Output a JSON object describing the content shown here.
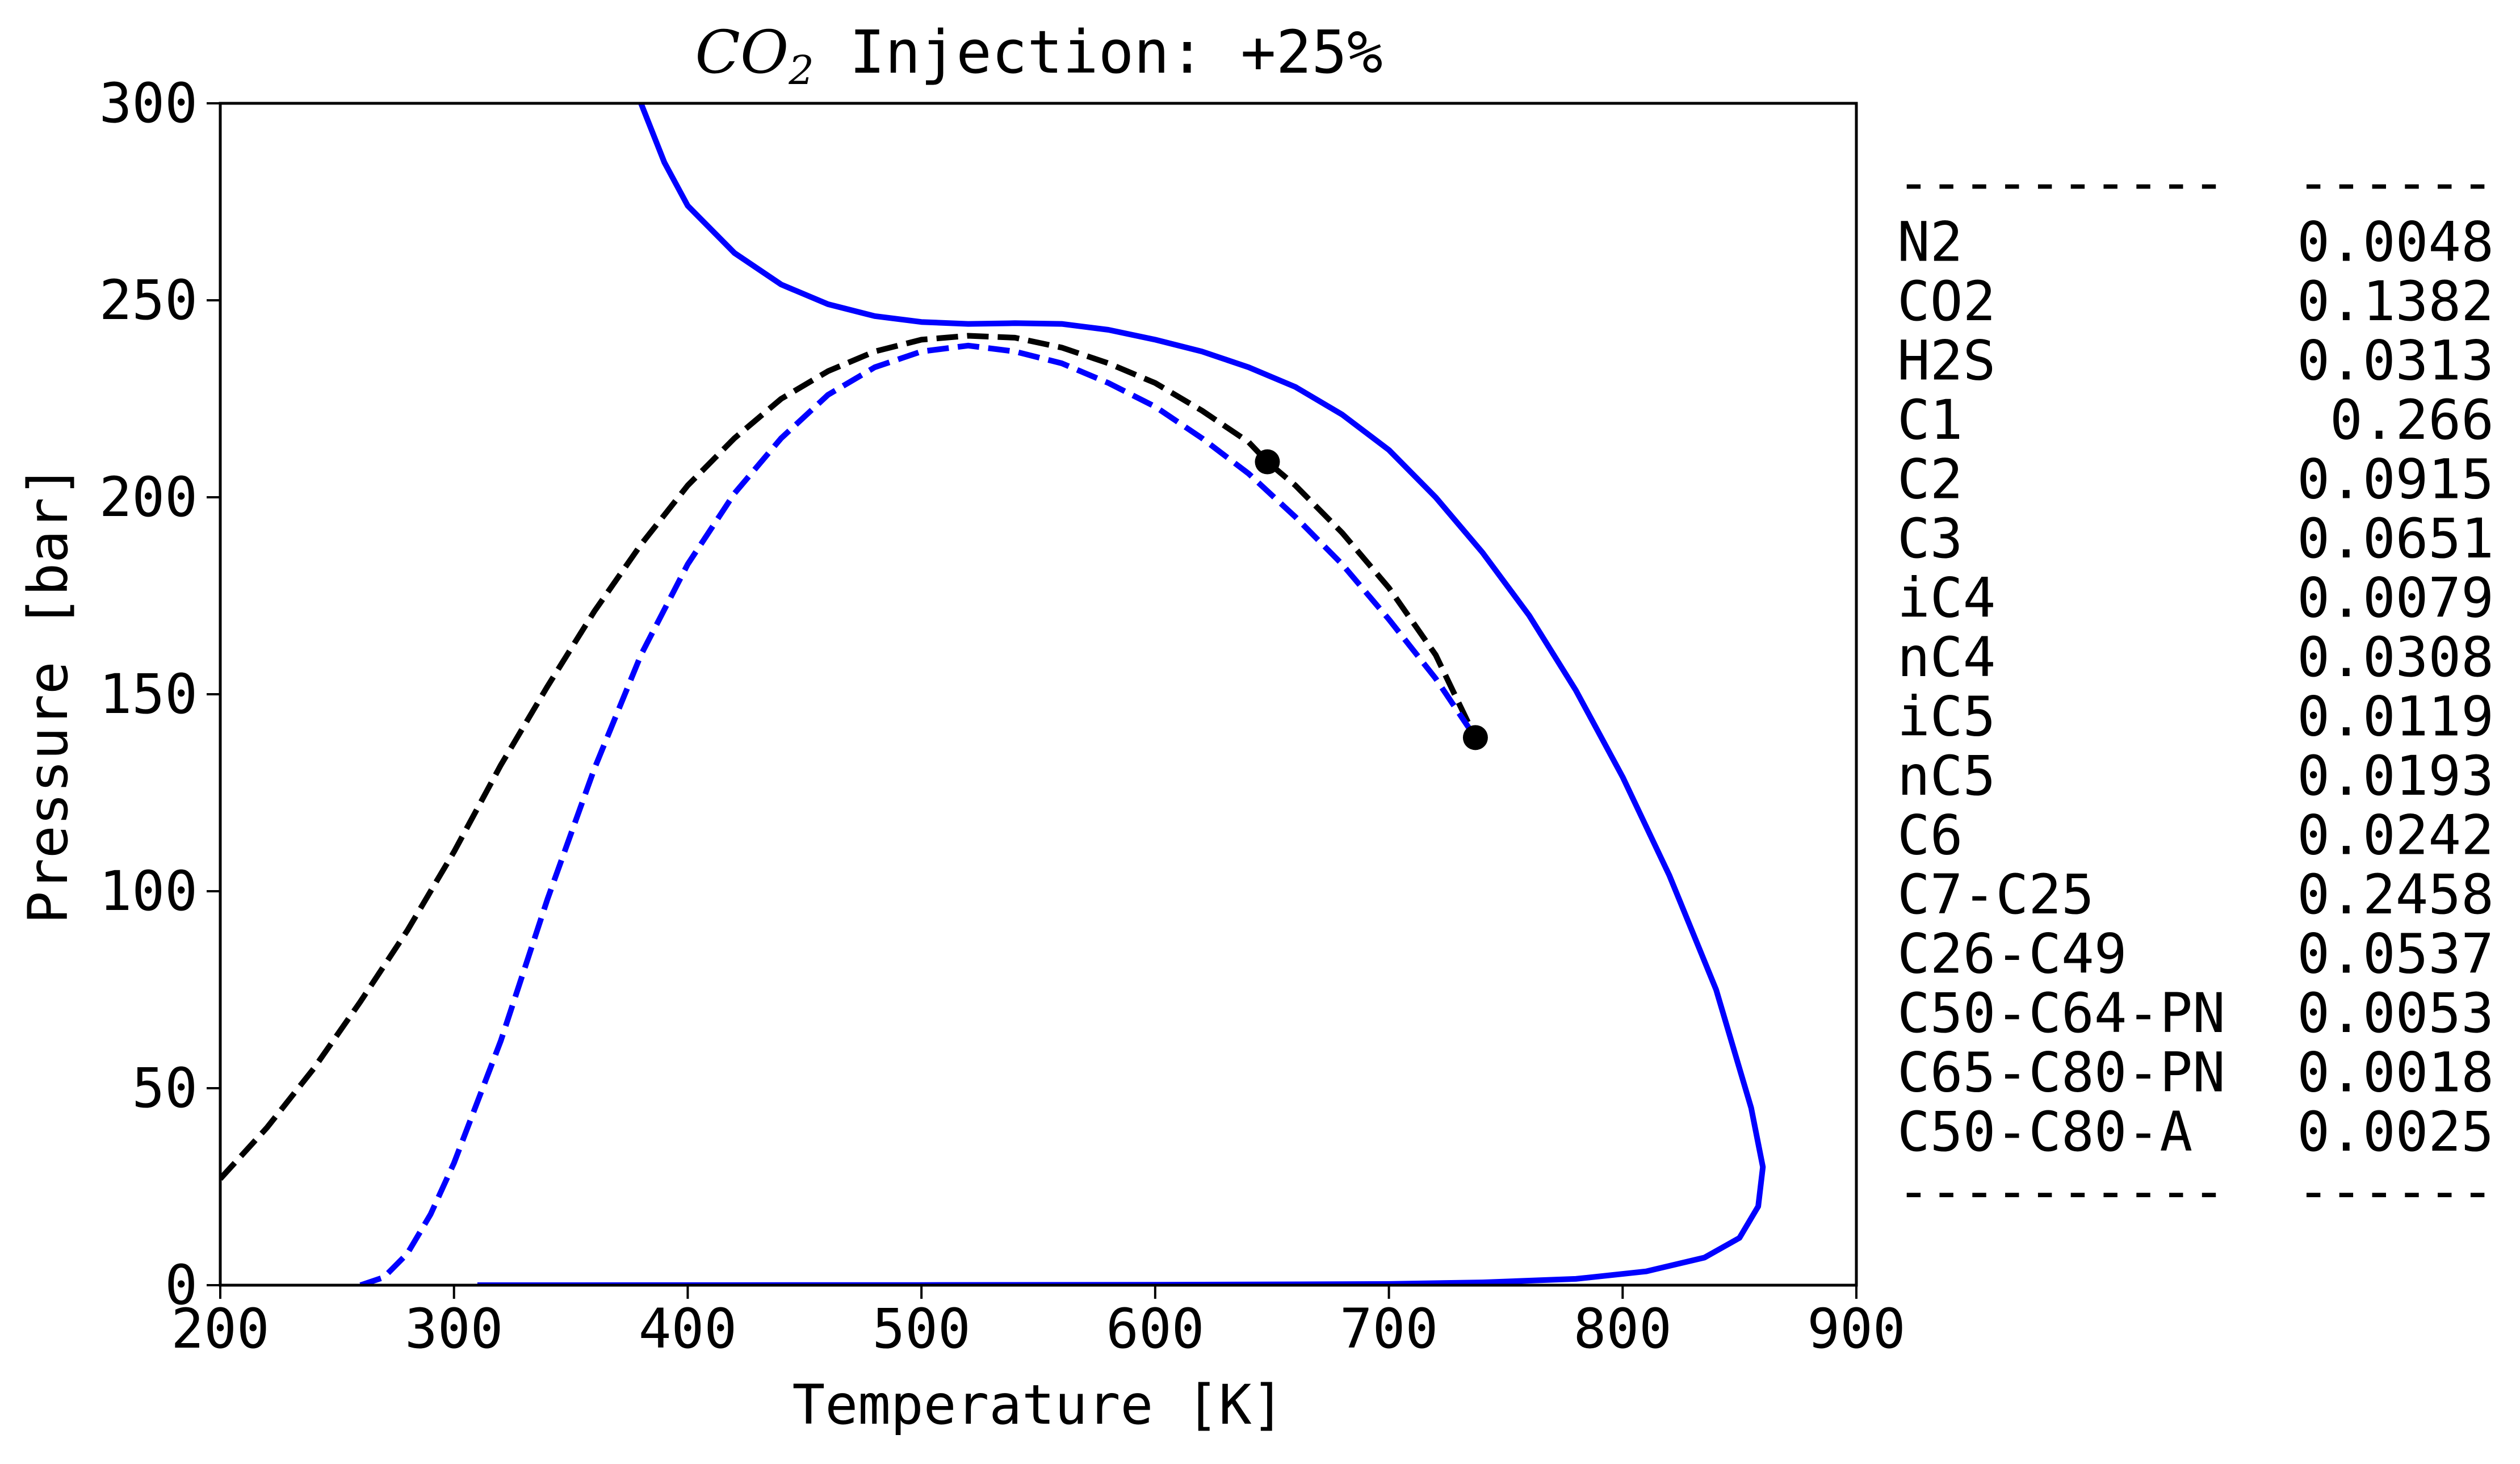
{
  "chart_data": {
    "type": "line",
    "title": {
      "chem_base": "CO",
      "chem_sub": "2",
      "rest": " Injection: +25%"
    },
    "xlabel": "Temperature [K]",
    "ylabel": "Pressure [bar]",
    "xlim": [
      200,
      900
    ],
    "ylim": [
      0,
      300
    ],
    "xticks": [
      200,
      300,
      400,
      500,
      600,
      700,
      800,
      900
    ],
    "yticks": [
      0,
      50,
      100,
      150,
      200,
      250,
      300
    ],
    "grid": false,
    "legend": null,
    "series": [
      {
        "color": "#0000ff",
        "style": "solid",
        "points": [
          [
            380,
            300
          ],
          [
            390,
            285
          ],
          [
            400,
            274
          ],
          [
            420,
            262
          ],
          [
            440,
            254
          ],
          [
            460,
            249
          ],
          [
            480,
            246
          ],
          [
            500,
            244.5
          ],
          [
            520,
            244
          ],
          [
            540,
            244.2
          ],
          [
            560,
            244
          ],
          [
            580,
            242.5
          ],
          [
            600,
            240
          ],
          [
            620,
            237
          ],
          [
            640,
            233
          ],
          [
            660,
            228
          ],
          [
            680,
            221
          ],
          [
            700,
            212
          ],
          [
            720,
            200
          ],
          [
            740,
            186
          ],
          [
            760,
            170
          ],
          [
            780,
            151
          ],
          [
            800,
            129
          ],
          [
            820,
            104
          ],
          [
            840,
            75
          ],
          [
            855,
            45
          ],
          [
            860,
            30
          ],
          [
            858,
            20
          ],
          [
            850,
            12
          ],
          [
            835,
            7
          ],
          [
            810,
            3.5
          ],
          [
            780,
            1.6
          ],
          [
            740,
            0.7
          ],
          [
            700,
            0.3
          ],
          [
            600,
            0.1
          ],
          [
            500,
            0.05
          ],
          [
            400,
            0.02
          ],
          [
            310,
            0
          ]
        ]
      },
      {
        "color": "#000000",
        "style": "dashed",
        "points": [
          [
            200,
            27
          ],
          [
            220,
            40
          ],
          [
            240,
            55
          ],
          [
            260,
            72
          ],
          [
            280,
            90
          ],
          [
            300,
            110
          ],
          [
            320,
            132
          ],
          [
            340,
            152
          ],
          [
            360,
            171
          ],
          [
            380,
            188
          ],
          [
            400,
            203
          ],
          [
            420,
            215
          ],
          [
            440,
            225
          ],
          [
            460,
            232
          ],
          [
            480,
            237
          ],
          [
            500,
            240
          ],
          [
            520,
            241
          ],
          [
            540,
            240.5
          ],
          [
            560,
            238
          ],
          [
            580,
            234
          ],
          [
            600,
            229
          ],
          [
            620,
            222
          ],
          [
            640,
            214
          ],
          [
            648,
            209
          ],
          [
            660,
            203
          ],
          [
            680,
            191
          ],
          [
            700,
            177
          ],
          [
            720,
            160
          ],
          [
            737,
            139
          ]
        ]
      },
      {
        "color": "#0000ff",
        "style": "dashed",
        "points": [
          [
            260,
            0
          ],
          [
            270,
            2
          ],
          [
            280,
            8
          ],
          [
            290,
            18
          ],
          [
            300,
            31
          ],
          [
            320,
            62
          ],
          [
            340,
            98
          ],
          [
            360,
            131
          ],
          [
            380,
            160
          ],
          [
            400,
            183
          ],
          [
            420,
            201
          ],
          [
            440,
            215
          ],
          [
            460,
            226
          ],
          [
            480,
            233
          ],
          [
            500,
            237
          ],
          [
            520,
            238.5
          ],
          [
            540,
            237
          ],
          [
            560,
            234
          ],
          [
            580,
            229
          ],
          [
            600,
            223
          ],
          [
            620,
            215
          ],
          [
            640,
            206
          ],
          [
            660,
            195
          ],
          [
            680,
            183
          ],
          [
            700,
            169
          ],
          [
            720,
            154
          ],
          [
            737,
            139
          ]
        ]
      }
    ],
    "markers": [
      {
        "x": 648,
        "y": 209,
        "color": "#000000"
      },
      {
        "x": 737,
        "y": 139,
        "color": "#000000"
      }
    ]
  },
  "composition_table": {
    "rule_left": "----------",
    "rule_right": "------",
    "rows": [
      {
        "component": "N2",
        "value": "0.0048"
      },
      {
        "component": "CO2",
        "value": "0.1382"
      },
      {
        "component": "H2S",
        "value": "0.0313"
      },
      {
        "component": "C1",
        "value": "0.266"
      },
      {
        "component": "C2",
        "value": "0.0915"
      },
      {
        "component": "C3",
        "value": "0.0651"
      },
      {
        "component": "iC4",
        "value": "0.0079"
      },
      {
        "component": "nC4",
        "value": "0.0308"
      },
      {
        "component": "iC5",
        "value": "0.0119"
      },
      {
        "component": "nC5",
        "value": "0.0193"
      },
      {
        "component": "C6",
        "value": "0.0242"
      },
      {
        "component": "C7-C25",
        "value": "0.2458"
      },
      {
        "component": "C26-C49",
        "value": "0.0537"
      },
      {
        "component": "C50-C64-PN",
        "value": "0.0053"
      },
      {
        "component": "C65-C80-PN",
        "value": "0.0018"
      },
      {
        "component": "C50-C80-A",
        "value": "0.0025"
      }
    ]
  }
}
